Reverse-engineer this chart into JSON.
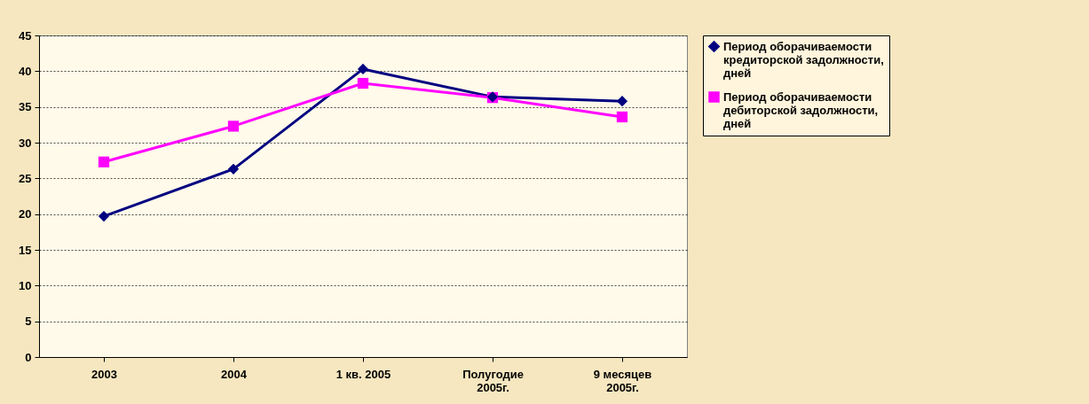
{
  "chart_data": {
    "type": "line",
    "categories": [
      "2003",
      "2004",
      "1 кв. 2005",
      "Полугодие 2005г.",
      "9 месяцев 2005г."
    ],
    "series": [
      {
        "name": "Период оборачиваемости кредиторской задолжности, дней",
        "color": "#000080",
        "marker": "diamond",
        "values": [
          19.7,
          26.3,
          40.3,
          36.4,
          35.8
        ]
      },
      {
        "name": "Период оборачиваемости дебиторской задолжности, дней",
        "color": "#ff00ff",
        "marker": "square",
        "values": [
          27.3,
          32.3,
          38.3,
          36.3,
          33.6
        ]
      }
    ],
    "ylim": [
      0,
      45
    ],
    "yticks": [
      0,
      5,
      10,
      15,
      20,
      25,
      30,
      35,
      40,
      45
    ],
    "grid": "y",
    "legend": "right",
    "line_style": "solid"
  }
}
